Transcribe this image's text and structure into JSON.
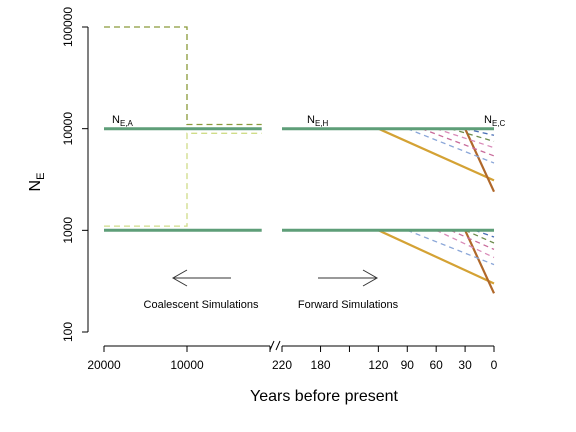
{
  "chart_data": {
    "type": "line",
    "xlabel": "Years before present",
    "ylabel": {
      "main": "N",
      "sub": "E"
    },
    "y_scale": "log",
    "ylim": [
      100,
      100000
    ],
    "y_ticks": [
      {
        "value": 100,
        "label": "100"
      },
      {
        "value": 1000,
        "label": "1000"
      },
      {
        "value": 10000,
        "label": "10000"
      },
      {
        "value": 100000,
        "label": "100000"
      }
    ],
    "x_axis_broken": true,
    "left_panel": {
      "xlim": [
        20000,
        0
      ],
      "ticks": [
        {
          "value": 20000,
          "label": "20000"
        },
        {
          "value": 10000,
          "label": "10000"
        },
        {
          "value": 0,
          "label": ""
        }
      ]
    },
    "right_panel": {
      "xlim": [
        220,
        0
      ],
      "ticks": [
        {
          "value": 220,
          "label": "220"
        },
        {
          "value": 180,
          "label": "180"
        },
        {
          "value": 150,
          "label": ""
        },
        {
          "value": 120,
          "label": "120"
        },
        {
          "value": 90,
          "label": "90"
        },
        {
          "value": 60,
          "label": "60"
        },
        {
          "value": 30,
          "label": "30"
        },
        {
          "value": 0,
          "label": "0"
        }
      ]
    },
    "annotations": {
      "ne_a": {
        "main": "N",
        "sub": "E,A"
      },
      "ne_h": {
        "main": "N",
        "sub": "E,H"
      },
      "ne_c": {
        "main": "N",
        "sub": "E,C"
      },
      "coalescent": "Coalescent Simulations",
      "forward": "Forward Simulations"
    },
    "colors": {
      "constant": "#5e9e78",
      "decline_orange": "#d4a234",
      "decline_brown": "#b0682a",
      "bottleneck_dark": "#8a9a3a",
      "bottleneck_light": "#cfdc88",
      "dashed_palette": [
        "#4a6fb5",
        "#c86a9a",
        "#8aa6d8",
        "#6a8a4a",
        "#d98ab8"
      ]
    },
    "left_series": [
      {
        "x": [
          20000,
          10000,
          10000,
          1000
        ],
        "y": [
          100000,
          100000,
          11000,
          11000
        ],
        "color_key": "bottleneck_dark",
        "dashed": true
      },
      {
        "x": [
          20000,
          10000,
          10000,
          1000
        ],
        "y": [
          1100,
          1100,
          9000,
          9000
        ],
        "color_key": "bottleneck_light",
        "dashed": true
      },
      {
        "x": [
          20000,
          1000
        ],
        "y": [
          10000,
          10000
        ],
        "color_key": "constant",
        "dashed": false
      },
      {
        "x": [
          20000,
          1000
        ],
        "y": [
          1000,
          1000
        ],
        "color_key": "constant",
        "dashed": false
      }
    ],
    "right_series": [
      {
        "x": [
          120,
          0
        ],
        "y": [
          10000,
          3100
        ],
        "color_key": "decline_orange",
        "dashed": false
      },
      {
        "x": [
          120,
          0
        ],
        "y": [
          1000,
          300
        ],
        "color_key": "decline_orange",
        "dashed": false
      },
      {
        "x": [
          30,
          0
        ],
        "y": [
          10000,
          2400
        ],
        "color_key": "decline_brown",
        "dashed": false
      },
      {
        "x": [
          30,
          0
        ],
        "y": [
          1000,
          240
        ],
        "color_key": "decline_brown",
        "dashed": false
      },
      {
        "x": [
          90,
          0
        ],
        "y": [
          10000,
          4600
        ],
        "color_key": "dashed_palette",
        "palette_index": 2,
        "dashed": true
      },
      {
        "x": [
          75,
          0
        ],
        "y": [
          10000,
          5400
        ],
        "color_key": "dashed_palette",
        "palette_index": 1,
        "dashed": true
      },
      {
        "x": [
          60,
          0
        ],
        "y": [
          10000,
          6500
        ],
        "color_key": "dashed_palette",
        "palette_index": 4,
        "dashed": true
      },
      {
        "x": [
          45,
          0
        ],
        "y": [
          10000,
          7500
        ],
        "color_key": "dashed_palette",
        "palette_index": 3,
        "dashed": true
      },
      {
        "x": [
          30,
          0
        ],
        "y": [
          10000,
          8600
        ],
        "color_key": "dashed_palette",
        "palette_index": 0,
        "dashed": true
      },
      {
        "x": [
          90,
          0
        ],
        "y": [
          1000,
          460
        ],
        "color_key": "dashed_palette",
        "palette_index": 2,
        "dashed": true
      },
      {
        "x": [
          60,
          0
        ],
        "y": [
          1000,
          540
        ],
        "color_key": "dashed_palette",
        "palette_index": 4,
        "dashed": true
      },
      {
        "x": [
          45,
          0
        ],
        "y": [
          1000,
          650
        ],
        "color_key": "dashed_palette",
        "palette_index": 1,
        "dashed": true
      },
      {
        "x": [
          30,
          0
        ],
        "y": [
          1000,
          750
        ],
        "color_key": "dashed_palette",
        "palette_index": 3,
        "dashed": true
      },
      {
        "x": [
          20,
          0
        ],
        "y": [
          1000,
          860
        ],
        "color_key": "dashed_palette",
        "palette_index": 0,
        "dashed": true
      },
      {
        "x": [
          220,
          0
        ],
        "y": [
          10000,
          10000
        ],
        "color_key": "constant",
        "dashed": false
      },
      {
        "x": [
          220,
          0
        ],
        "y": [
          1000,
          1000
        ],
        "color_key": "constant",
        "dashed": false
      }
    ]
  }
}
